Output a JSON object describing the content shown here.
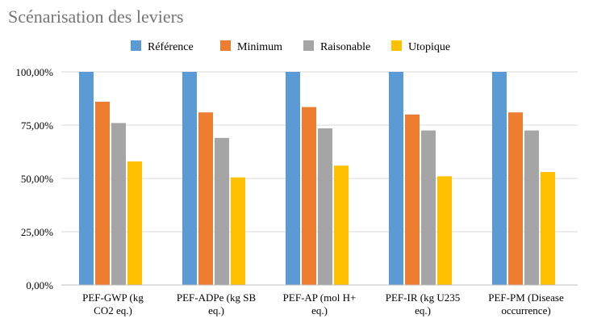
{
  "chart_data": {
    "type": "bar",
    "title": "Scénarisation des leviers",
    "xlabel": "",
    "ylabel": "",
    "ylim": [
      0,
      100
    ],
    "y_tick_values": [
      0,
      25,
      50,
      75,
      100
    ],
    "y_tick_labels": [
      "0,00%",
      "25,00%",
      "50,00%",
      "75,00%",
      "100,00%"
    ],
    "grid": true,
    "legend_position": "top-center",
    "categories": [
      "PEF-GWP (kg CO2 eq.)",
      "PEF-ADPe (kg SB eq.)",
      "PEF-AP (mol H+ eq.)",
      "PEF-IR (kg U235 eq.)",
      "PEF-PM (Disease occurrence)"
    ],
    "category_lines": [
      [
        "PEF-GWP (kg",
        "CO2 eq.)"
      ],
      [
        "PEF-ADPe (kg SB",
        "eq.)"
      ],
      [
        "PEF-AP (mol H+",
        "eq.)"
      ],
      [
        "PEF-IR (kg U235",
        "eq.)"
      ],
      [
        "PEF-PM (Disease",
        "occurrence)"
      ]
    ],
    "series": [
      {
        "name": "Référence",
        "color": "#5B9BD5",
        "values": [
          100,
          100,
          100,
          100,
          100
        ]
      },
      {
        "name": "Minimum",
        "color": "#ED7D31",
        "values": [
          86,
          81,
          83.5,
          80,
          81
        ]
      },
      {
        "name": "Raisonable",
        "color": "#A5A5A5",
        "values": [
          76,
          69,
          73.5,
          72.5,
          72.5
        ]
      },
      {
        "name": "Utopique",
        "color": "#FFC000",
        "values": [
          58,
          50.5,
          56,
          51,
          53
        ]
      }
    ]
  }
}
